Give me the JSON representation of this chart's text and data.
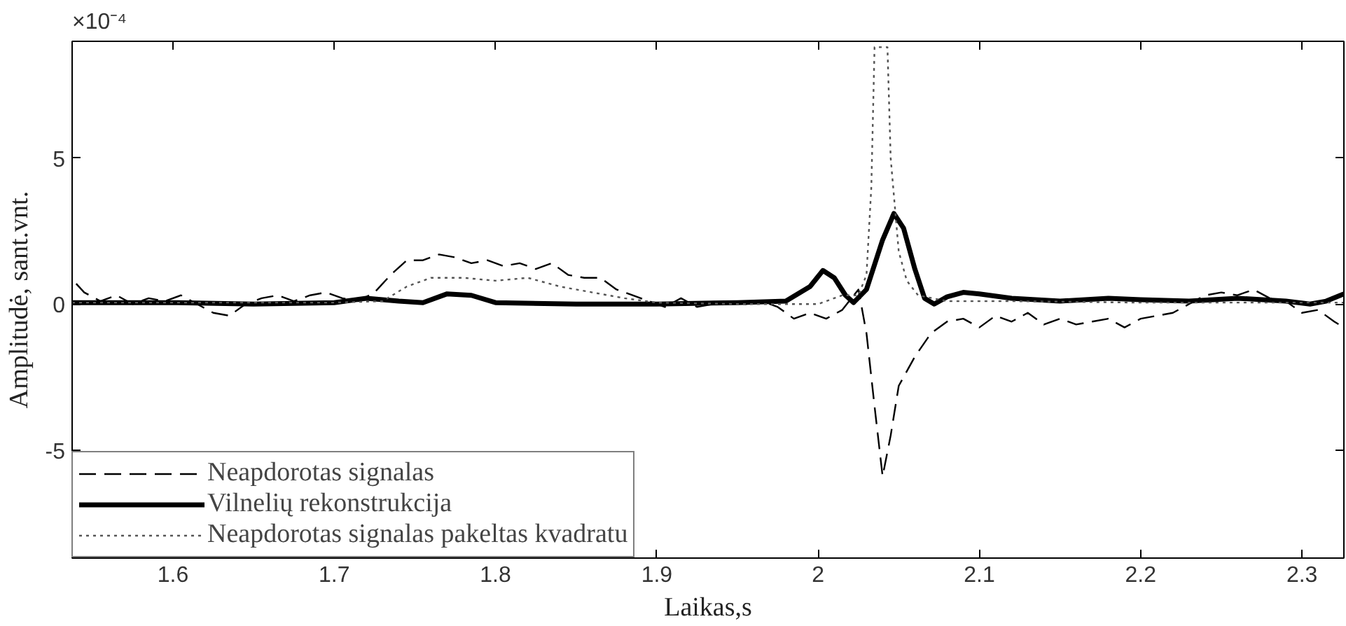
{
  "chart_data": {
    "type": "line",
    "xlabel": "Laikas,s",
    "ylabel": "Amplitudė, sant.vnt.",
    "annotations": [
      "×10⁻⁴"
    ],
    "xlim": [
      1.5375,
      2.326
    ],
    "xticks": [
      1.6,
      1.7,
      1.8,
      1.9,
      2,
      2.1,
      2.2,
      2.3
    ],
    "ylim": [
      -8.7,
      9
    ],
    "yticks": [
      -5,
      0,
      5
    ],
    "grid": false,
    "legend": "bottom left",
    "series": [
      {
        "name": "Neapdorotas signalas",
        "color": "#000000",
        "line_style": "dashed",
        "x": [
          1.54,
          1.545,
          1.555,
          1.565,
          1.575,
          1.585,
          1.595,
          1.605,
          1.615,
          1.625,
          1.635,
          1.645,
          1.655,
          1.665,
          1.675,
          1.685,
          1.695,
          1.705,
          1.715,
          1.725,
          1.735,
          1.745,
          1.755,
          1.765,
          1.775,
          1.785,
          1.795,
          1.805,
          1.815,
          1.825,
          1.835,
          1.845,
          1.855,
          1.865,
          1.875,
          1.885,
          1.895,
          1.905,
          1.915,
          1.925,
          1.935,
          1.945,
          1.955,
          1.965,
          1.975,
          1.985,
          1.995,
          2.005,
          2.015,
          2.025,
          2.03,
          2.035,
          2.04,
          2.045,
          2.05,
          2.06,
          2.07,
          2.08,
          2.09,
          2.1,
          2.11,
          2.12,
          2.13,
          2.14,
          2.15,
          2.16,
          2.17,
          2.18,
          2.19,
          2.2,
          2.21,
          2.22,
          2.23,
          2.24,
          2.25,
          2.26,
          2.27,
          2.28,
          2.29,
          2.3,
          2.31,
          2.32,
          2.326
        ],
        "values": [
          0.7,
          0.4,
          0.1,
          0.3,
          0.0,
          0.2,
          0.1,
          0.3,
          0.0,
          -0.3,
          -0.4,
          0.0,
          0.2,
          0.3,
          0.1,
          0.3,
          0.4,
          0.2,
          0.1,
          0.4,
          1.0,
          1.5,
          1.5,
          1.7,
          1.6,
          1.4,
          1.5,
          1.3,
          1.4,
          1.2,
          1.4,
          1.0,
          0.9,
          0.9,
          0.5,
          0.3,
          0.1,
          -0.1,
          0.2,
          -0.1,
          0.0,
          0.1,
          0.0,
          0.1,
          -0.1,
          -0.5,
          -0.3,
          -0.5,
          -0.2,
          0.5,
          -1.0,
          -3.5,
          -5.9,
          -4.5,
          -2.8,
          -1.8,
          -1.0,
          -0.6,
          -0.5,
          -0.8,
          -0.4,
          -0.6,
          -0.3,
          -0.7,
          -0.5,
          -0.7,
          -0.6,
          -0.5,
          -0.8,
          -0.5,
          -0.4,
          -0.3,
          0.0,
          0.3,
          0.4,
          0.3,
          0.5,
          0.2,
          0.1,
          -0.3,
          -0.2,
          -0.6,
          -0.8
        ]
      },
      {
        "name": "Vilnelių rekonstrukcija",
        "color": "#000000",
        "line_style": "solid",
        "x": [
          1.5375,
          1.6,
          1.65,
          1.7,
          1.72,
          1.74,
          1.755,
          1.77,
          1.785,
          1.8,
          1.85,
          1.9,
          1.95,
          1.98,
          1.995,
          2.003,
          2.01,
          2.017,
          2.022,
          2.03,
          2.04,
          2.047,
          2.053,
          2.06,
          2.066,
          2.072,
          2.08,
          2.09,
          2.1,
          2.12,
          2.15,
          2.18,
          2.2,
          2.23,
          2.26,
          2.29,
          2.305,
          2.315,
          2.326
        ],
        "values": [
          0.05,
          0.05,
          0.0,
          0.05,
          0.2,
          0.1,
          0.05,
          0.35,
          0.3,
          0.05,
          0.0,
          0.0,
          0.05,
          0.1,
          0.6,
          1.15,
          0.9,
          0.3,
          0.05,
          0.5,
          2.2,
          3.1,
          2.6,
          1.2,
          0.2,
          0.0,
          0.25,
          0.4,
          0.35,
          0.2,
          0.1,
          0.2,
          0.15,
          0.1,
          0.2,
          0.1,
          0.0,
          0.1,
          0.35
        ]
      },
      {
        "name": "Neapdorotas signalas pakeltas kvadratu",
        "color": "#555555",
        "line_style": "dotted",
        "x": [
          1.5375,
          1.6,
          1.7,
          1.73,
          1.745,
          1.76,
          1.78,
          1.8,
          1.82,
          1.84,
          1.86,
          1.88,
          1.9,
          1.95,
          2.0,
          2.015,
          2.025,
          2.03,
          2.033,
          2.035,
          2.043,
          2.045,
          2.05,
          2.055,
          2.062,
          2.08,
          2.12,
          2.2,
          2.326
        ],
        "values": [
          0.05,
          0.05,
          0.05,
          0.1,
          0.6,
          0.9,
          0.9,
          0.8,
          0.9,
          0.6,
          0.4,
          0.2,
          0.05,
          0.0,
          0.0,
          0.3,
          0.3,
          1.0,
          4.0,
          8.8,
          8.8,
          5.0,
          1.8,
          0.8,
          0.3,
          0.1,
          0.1,
          0.05,
          0.05
        ]
      }
    ]
  }
}
